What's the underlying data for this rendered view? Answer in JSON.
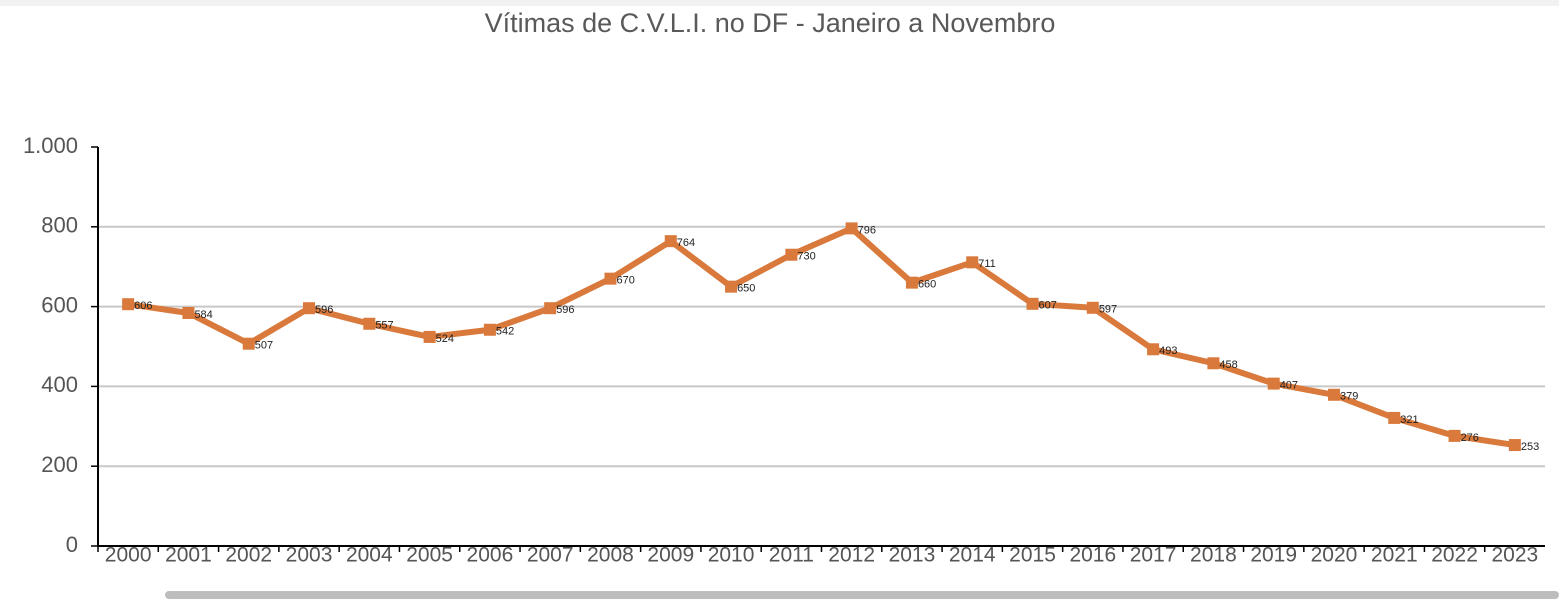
{
  "chart_data": {
    "type": "line",
    "title": "Vítimas de C.V.L.I. no DF - Janeiro a Novembro",
    "categories": [
      "2000",
      "2001",
      "2002",
      "2003",
      "2004",
      "2005",
      "2006",
      "2007",
      "2008",
      "2009",
      "2010",
      "2011",
      "2012",
      "2013",
      "2014",
      "2015",
      "2016",
      "2017",
      "2018",
      "2019",
      "2020",
      "2021",
      "2022",
      "2023"
    ],
    "values": [
      606,
      584,
      507,
      596,
      557,
      524,
      542,
      596,
      670,
      764,
      650,
      730,
      796,
      660,
      711,
      607,
      597,
      493,
      458,
      407,
      379,
      321,
      276,
      253
    ],
    "color": "#d9793b",
    "ylim": [
      0,
      1000
    ],
    "yticks": [
      0,
      200,
      400,
      600,
      800,
      {
        "value": 1000,
        "label": "1.000"
      }
    ],
    "grid": true
  }
}
